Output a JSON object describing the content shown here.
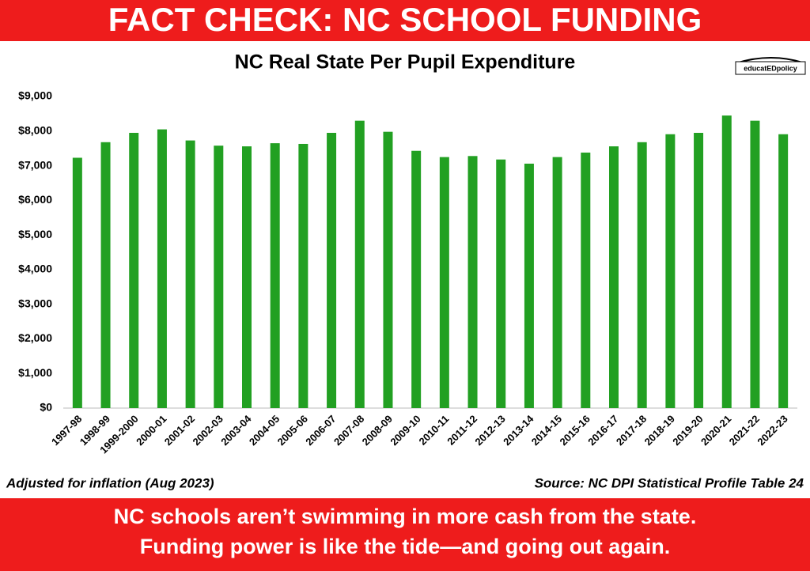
{
  "header": {
    "title": "FACT CHECK: NC SCHOOL FUNDING"
  },
  "logo": "educatEDpolicy",
  "chart_data": {
    "type": "bar",
    "title": "NC Real State Per Pupil Expenditure",
    "categories": [
      "1997-98",
      "1998-99",
      "1999-2000",
      "2000-01",
      "2001-02",
      "2002-03",
      "2003-04",
      "2004-05",
      "2005-06",
      "2006-07",
      "2007-08",
      "2008-09",
      "2009-10",
      "2010-11",
      "2011-12",
      "2012-13",
      "2013-14",
      "2014-15",
      "2015-16",
      "2016-17",
      "2017-18",
      "2018-19",
      "2019-20",
      "2020-21",
      "2021-22",
      "2022-23"
    ],
    "values": [
      7230,
      7680,
      7950,
      8050,
      7730,
      7580,
      7560,
      7650,
      7630,
      7950,
      8300,
      7980,
      7430,
      7250,
      7280,
      7180,
      7060,
      7250,
      7380,
      7560,
      7680,
      7910,
      7950,
      8450,
      8300,
      7910
    ],
    "color": "#22a022",
    "ylim": [
      0,
      9000
    ],
    "yticks": [
      {
        "value": 0,
        "label": "$0"
      },
      {
        "value": 1000,
        "label": "$1,000"
      },
      {
        "value": 2000,
        "label": "$2,000"
      },
      {
        "value": 3000,
        "label": "$3,000"
      },
      {
        "value": 4000,
        "label": "$4,000"
      },
      {
        "value": 5000,
        "label": "$5,000"
      },
      {
        "value": 6000,
        "label": "$6,000"
      },
      {
        "value": 7000,
        "label": "$7,000"
      },
      {
        "value": 8000,
        "label": "$8,000"
      },
      {
        "value": 9000,
        "label": "$9,000"
      }
    ],
    "grid": false,
    "note": "Adjusted for inflation (Aug 2023)",
    "source": "Source: NC DPI Statistical Profile Table 24"
  },
  "footer": {
    "lines": [
      "NC schools aren’t swimming in more cash from the state.",
      "Funding power is like the tide—and going out again."
    ]
  }
}
